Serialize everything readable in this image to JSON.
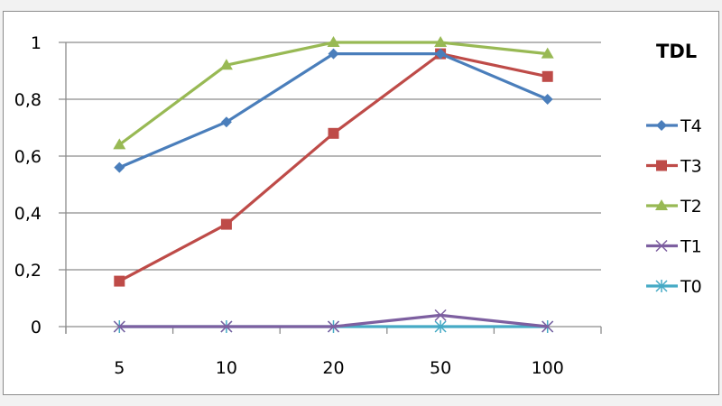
{
  "chart_data": {
    "type": "line",
    "title": "",
    "legend_title": "TDL",
    "legend_position": "right",
    "xlabel": "",
    "ylabel": "",
    "categories": [
      "5",
      "10",
      "20",
      "50",
      "100"
    ],
    "ylim": [
      0,
      1
    ],
    "yticks": [
      "0",
      "0,2",
      "0,4",
      "0,6",
      "0,8",
      "1"
    ],
    "grid": true,
    "series": [
      {
        "name": "T4",
        "color": "#4a7ebb",
        "marker": "diamond",
        "values": [
          0.56,
          0.72,
          0.96,
          0.96,
          0.8
        ]
      },
      {
        "name": "T3",
        "color": "#be4b48",
        "marker": "square",
        "values": [
          0.16,
          0.36,
          0.68,
          0.96,
          0.88
        ]
      },
      {
        "name": "T2",
        "color": "#98b954",
        "marker": "triangle",
        "values": [
          0.64,
          0.92,
          1.0,
          1.0,
          0.96
        ]
      },
      {
        "name": "T1",
        "color": "#7d5fa0",
        "marker": "x",
        "values": [
          0,
          0,
          0,
          0.04,
          0
        ]
      },
      {
        "name": "T0",
        "color": "#46aac5",
        "marker": "asterisk",
        "values": [
          0,
          0,
          0,
          0,
          0
        ]
      }
    ]
  }
}
